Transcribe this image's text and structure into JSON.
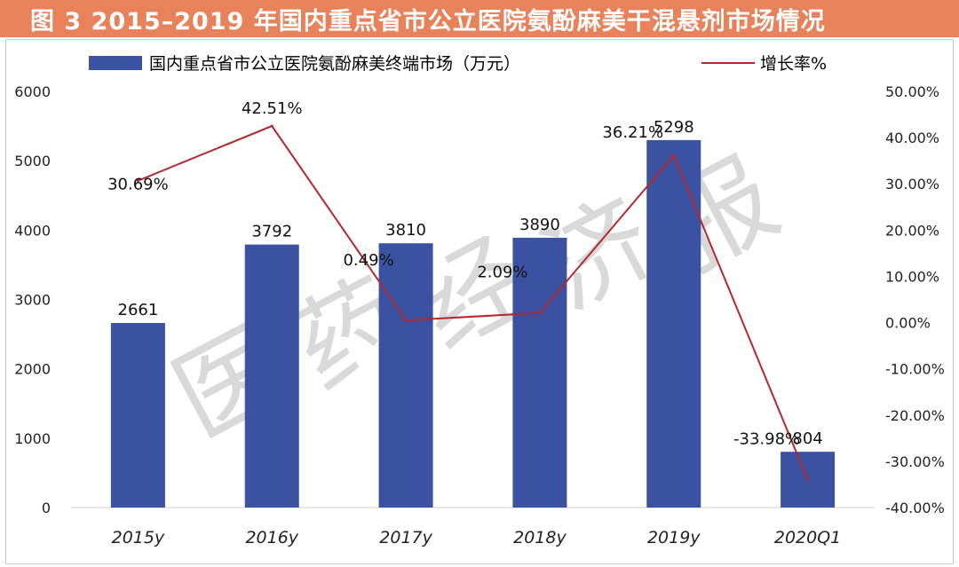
{
  "title": "图 3   2015–2019 年国内重点省市公立医院氨酚麻美干混悬剂市场情况",
  "watermark": "医药经济报",
  "colors": {
    "title_bg": "#e8825a",
    "bar": "#3b52a3",
    "line": "#b3282d",
    "axis_text": "#222222",
    "watermark": "#d9d9d9"
  },
  "chart_data": {
    "type": "bar",
    "categories": [
      "2015y",
      "2016y",
      "2017y",
      "2018y",
      "2019y",
      "2020Q1"
    ],
    "series": [
      {
        "name": "国内重点省市公立医院氨酚麻美终端市场（万元）",
        "type": "bar",
        "axis": "left",
        "values": [
          2661,
          3792,
          3810,
          3890,
          5298,
          804
        ],
        "labels": [
          "2661",
          "3792",
          "3810",
          "3890",
          "5298",
          "804"
        ]
      },
      {
        "name": "增长率%",
        "type": "line",
        "axis": "right",
        "values": [
          30.69,
          42.51,
          0.49,
          2.09,
          36.21,
          -33.98
        ],
        "labels": [
          "30.69%",
          "42.51%",
          "0.49%",
          "2.09%",
          "36.21%",
          "-33.98%"
        ]
      }
    ],
    "y_left": {
      "range": [
        0,
        6000
      ],
      "ticks": [
        "0",
        "1000",
        "2000",
        "3000",
        "4000",
        "5000",
        "6000"
      ]
    },
    "y_right": {
      "range": [
        -40,
        50
      ],
      "ticks": [
        "-40.00%",
        "-30.00%",
        "-20.00%",
        "-10.00%",
        "0.00%",
        "10.00%",
        "20.00%",
        "30.00%",
        "40.00%",
        "50.00%"
      ]
    },
    "legend_position": "top",
    "grid": false
  }
}
